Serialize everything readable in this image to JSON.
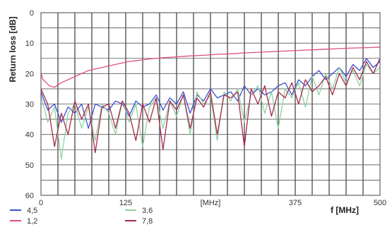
{
  "chart_data": {
    "type": "line",
    "ylabel": "Return loss [dB]",
    "xlabel": "f [MHz]",
    "x_unit_label": "[MHz]",
    "xlim": [
      0,
      500
    ],
    "ylim": [
      0,
      60
    ],
    "y_inverted": true,
    "grid": true,
    "x_ticks": [
      {
        "value": 0,
        "label": "0"
      },
      {
        "value": 125,
        "label": "125"
      },
      {
        "value": 375,
        "label": "375"
      },
      {
        "value": 500,
        "label": "500"
      }
    ],
    "y_ticks": [
      {
        "value": 0,
        "label": "0"
      },
      {
        "value": 10,
        "label": "10"
      },
      {
        "value": 20,
        "label": "20"
      },
      {
        "value": 30,
        "label": "30"
      },
      {
        "value": 40,
        "label": "40"
      },
      {
        "value": 50,
        "label": "50"
      },
      {
        "value": 60,
        "label": "60"
      }
    ],
    "legend_position": "bottom-left",
    "series": [
      {
        "name": "4,5",
        "color": "#3a4fd0",
        "x": [
          0,
          10,
          20,
          30,
          40,
          50,
          60,
          70,
          80,
          90,
          100,
          110,
          120,
          130,
          140,
          150,
          160,
          170,
          180,
          190,
          200,
          210,
          220,
          230,
          240,
          250,
          260,
          270,
          280,
          290,
          300,
          310,
          320,
          330,
          340,
          350,
          360,
          370,
          380,
          390,
          400,
          410,
          420,
          430,
          440,
          450,
          460,
          470,
          480,
          490,
          500
        ],
        "y": [
          26,
          32,
          30,
          36,
          31,
          33,
          30,
          38,
          30,
          31,
          32,
          29,
          30,
          34,
          29,
          31,
          30,
          27,
          32,
          28,
          30,
          26,
          33,
          27,
          29,
          25,
          28,
          27,
          26,
          29,
          24,
          27,
          25,
          27,
          26,
          24,
          23,
          27,
          22,
          24,
          21,
          19,
          22,
          20,
          18,
          21,
          17,
          19,
          15,
          18,
          16
        ]
      },
      {
        "name": "3,6",
        "color": "#8fd0a0",
        "x": [
          0,
          10,
          20,
          30,
          40,
          50,
          60,
          70,
          80,
          90,
          100,
          110,
          120,
          130,
          140,
          150,
          160,
          170,
          180,
          190,
          200,
          210,
          220,
          230,
          240,
          250,
          260,
          270,
          280,
          290,
          300,
          310,
          320,
          330,
          340,
          350,
          360,
          370,
          380,
          390,
          400,
          410,
          420,
          430,
          440,
          450,
          460,
          470,
          480,
          490,
          500
        ],
        "y": [
          27,
          36,
          31,
          48,
          33,
          30,
          38,
          31,
          42,
          30,
          33,
          40,
          29,
          36,
          30,
          44,
          31,
          28,
          38,
          29,
          34,
          27,
          40,
          26,
          30,
          27,
          42,
          26,
          29,
          25,
          36,
          27,
          24,
          33,
          26,
          38,
          25,
          28,
          23,
          31,
          21,
          27,
          20,
          25,
          18,
          23,
          19,
          24,
          17,
          20,
          18
        ]
      },
      {
        "name": "1,2",
        "color": "#e0507a",
        "x": [
          0,
          3,
          8,
          12,
          20,
          30,
          40,
          50,
          60,
          70,
          80,
          90,
          100,
          110,
          120,
          130,
          140,
          150,
          160,
          180,
          200,
          220,
          240,
          260,
          280,
          300,
          320,
          340,
          360,
          380,
          400,
          420,
          440,
          460,
          480,
          500
        ],
        "y": [
          20,
          22,
          23,
          24,
          24.5,
          23,
          22,
          21,
          20,
          19,
          18.5,
          18,
          17.5,
          17,
          16.5,
          16,
          15.8,
          15.5,
          15.2,
          14.8,
          14.5,
          14.2,
          14,
          13.7,
          13.5,
          13.2,
          13,
          12.8,
          12.6,
          12.4,
          12.2,
          12,
          11.8,
          11.6,
          11.5,
          11.3
        ]
      },
      {
        "name": "7,8",
        "color": "#a8284a",
        "x": [
          0,
          10,
          20,
          30,
          40,
          50,
          60,
          70,
          80,
          90,
          100,
          110,
          120,
          130,
          140,
          150,
          160,
          170,
          180,
          190,
          200,
          210,
          220,
          230,
          240,
          250,
          260,
          270,
          280,
          290,
          300,
          310,
          320,
          330,
          340,
          350,
          360,
          370,
          380,
          390,
          400,
          410,
          420,
          430,
          440,
          450,
          460,
          470,
          480,
          490,
          500
        ],
        "y": [
          25,
          30,
          44,
          33,
          40,
          29,
          35,
          30,
          46,
          31,
          30,
          38,
          29,
          33,
          42,
          30,
          36,
          28,
          45,
          29,
          32,
          27,
          38,
          28,
          31,
          26,
          40,
          27,
          28,
          26,
          44,
          25,
          30,
          24,
          34,
          26,
          28,
          23,
          30,
          22,
          26,
          24,
          21,
          27,
          20,
          24,
          18,
          22,
          16,
          20,
          15
        ]
      }
    ]
  }
}
